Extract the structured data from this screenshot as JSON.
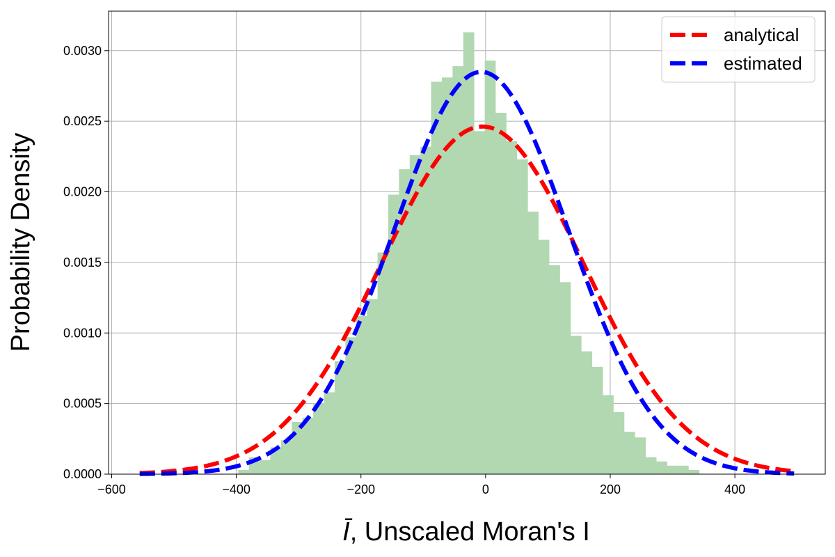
{
  "chart_data": {
    "type": "histogram",
    "title": "",
    "xlabel": "Ī, Unscaled Moran's I",
    "xlabel_symbol": "Ī",
    "xlabel_text": ", Unscaled Moran's I",
    "ylabel": "Probability Density",
    "xlim": [
      -605,
      545
    ],
    "ylim": [
      0,
      0.00328
    ],
    "xticks": [
      -600,
      -400,
      -200,
      0,
      200,
      400
    ],
    "xtick_labels": [
      "−600",
      "−400",
      "−200",
      "0",
      "200",
      "400"
    ],
    "yticks": [
      0.0,
      0.0005,
      0.001,
      0.0015,
      0.002,
      0.0025,
      0.003
    ],
    "ytick_labels": [
      "0.0000",
      "0.0005",
      "0.0010",
      "0.0015",
      "0.0020",
      "0.0025",
      "0.0030"
    ],
    "grid": true,
    "legend_position": "top-right",
    "histogram": {
      "color": "#b2d8b2",
      "bin_start": -397,
      "bin_width": 17.2,
      "densities": [
        3e-05,
        0.00012,
        0.0001,
        0.00019,
        0.00024,
        0.00037,
        0.0004,
        0.0005,
        0.00058,
        0.0008,
        0.00097,
        0.00112,
        0.00124,
        0.00157,
        0.00198,
        0.00216,
        0.00226,
        0.00232,
        0.00278,
        0.00281,
        0.00289,
        0.00313,
        0.00243,
        0.00293,
        0.00256,
        0.00236,
        0.00223,
        0.00186,
        0.00166,
        0.00148,
        0.00136,
        0.00098,
        0.00087,
        0.00076,
        0.00056,
        0.00044,
        0.0003,
        0.00026,
        0.00012,
        9e-05,
        6e-05,
        6e-05,
        3e-05
      ]
    },
    "series": [
      {
        "name": "analytical",
        "color": "#ff0000",
        "style": "dashed",
        "distribution": "normal",
        "mean": -5,
        "std": 162,
        "x_range": [
          -555,
          495
        ]
      },
      {
        "name": "estimated",
        "color": "#0000ff",
        "style": "dashed",
        "distribution": "normal",
        "mean": -7,
        "std": 140,
        "x_range": [
          -555,
          495
        ]
      }
    ]
  }
}
